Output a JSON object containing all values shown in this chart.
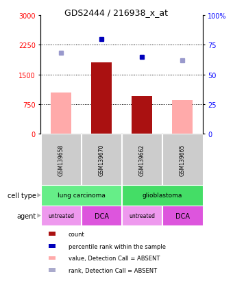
{
  "title": "GDS2444 / 216938_x_at",
  "samples": [
    "GSM139658",
    "GSM139670",
    "GSM139662",
    "GSM139665"
  ],
  "bar_values_dark": [
    null,
    1800,
    950,
    null
  ],
  "bar_values_light": [
    1050,
    null,
    null,
    850
  ],
  "dot_values_blue_dark": [
    null,
    2400,
    1950,
    null
  ],
  "dot_values_blue_light": [
    2050,
    null,
    null,
    1850
  ],
  "ylim_left": [
    0,
    3000
  ],
  "ylim_right": [
    0,
    100
  ],
  "yticks_left": [
    0,
    750,
    1500,
    2250,
    3000
  ],
  "yticks_right": [
    0,
    25,
    50,
    75,
    100
  ],
  "ytick_labels_left": [
    "0",
    "750",
    "1500",
    "2250",
    "3000"
  ],
  "ytick_labels_right": [
    "0",
    "25",
    "50",
    "75",
    "100%"
  ],
  "dotted_lines": [
    750,
    1500,
    2250
  ],
  "cell_type_labels": [
    [
      "lung carcinoma",
      0,
      2
    ],
    [
      "glioblastoma",
      2,
      4
    ]
  ],
  "cell_type_colors": [
    "#66ee88",
    "#44dd66"
  ],
  "agent_labels": [
    "untreated",
    "DCA",
    "untreated",
    "DCA"
  ],
  "agent_colors": [
    "#ee99ee",
    "#dd55dd",
    "#ee99ee",
    "#dd55dd"
  ],
  "agent_fontsizes": [
    5.5,
    7,
    5.5,
    7
  ],
  "sample_bg_color": "#cccccc",
  "bar_color_dark": "#aa1111",
  "bar_color_light": "#ffaaaa",
  "dot_color_dark": "#0000bb",
  "dot_color_light": "#9999cc",
  "legend_items": [
    {
      "color": "#aa1111",
      "label": "count"
    },
    {
      "color": "#0000bb",
      "label": "percentile rank within the sample"
    },
    {
      "color": "#ffaaaa",
      "label": "value, Detection Call = ABSENT"
    },
    {
      "color": "#aaaacc",
      "label": "rank, Detection Call = ABSENT"
    }
  ]
}
